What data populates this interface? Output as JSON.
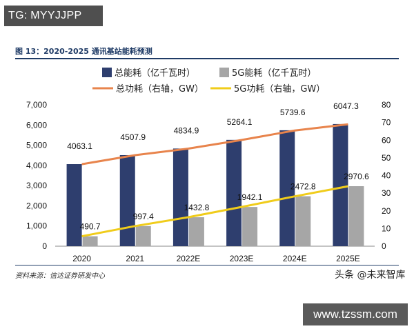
{
  "watermark_tag": "TG: MYYJJPP",
  "figure_title": "图 13：2020-2025 通讯基站能耗预测",
  "source": "资料来源：信达证券研发中心",
  "brand": "头条 @未来智库",
  "url": "www.tzssm.com",
  "colors": {
    "bar_total": "#2e3e6e",
    "bar_5g": "#a6a6a6",
    "line_total": "#e8844c",
    "line_5g": "#f0cc1a"
  },
  "chart_data": {
    "type": "bar",
    "title": "2020-2025 通讯基站能耗预测",
    "categories": [
      "2020",
      "2021",
      "2022E",
      "2023E",
      "2024E",
      "2025E"
    ],
    "series": [
      {
        "name": "总能耗（亿千瓦时）",
        "type": "bar",
        "axis": "left",
        "values": [
          4063.1,
          4507.9,
          4834.9,
          5264.1,
          5739.6,
          6047.3
        ],
        "labels": [
          "4063.1",
          "4507.9",
          "4834.9",
          "5264.1",
          "5739.6",
          "6047.3"
        ]
      },
      {
        "name": "5G能耗（亿千瓦时）",
        "type": "bar",
        "axis": "left",
        "values": [
          490.7,
          997.4,
          1432.8,
          1942.1,
          2472.8,
          2970.6
        ],
        "labels": [
          "490.7",
          "997.4",
          "1432.8",
          "1942.1",
          "2472.8",
          "2970.6"
        ]
      },
      {
        "name": "总功耗（右轴，GW）",
        "type": "line",
        "axis": "right",
        "values": [
          46.4,
          51.5,
          55.2,
          60.1,
          65.5,
          69.0
        ]
      },
      {
        "name": "5G功耗（右轴，GW）",
        "type": "line",
        "axis": "right",
        "values": [
          5.6,
          11.4,
          16.4,
          22.2,
          28.2,
          33.9
        ]
      }
    ],
    "y_left": {
      "range": [
        0,
        7000
      ],
      "ticks": [
        "0",
        "1,000",
        "2,000",
        "3,000",
        "4,000",
        "5,000",
        "6,000",
        "7,000"
      ]
    },
    "y_right": {
      "range": [
        0,
        80
      ],
      "ticks": [
        "0",
        "10",
        "20",
        "30",
        "40",
        "50",
        "60",
        "70",
        "80"
      ]
    },
    "legend_position": "top",
    "grid": false
  }
}
